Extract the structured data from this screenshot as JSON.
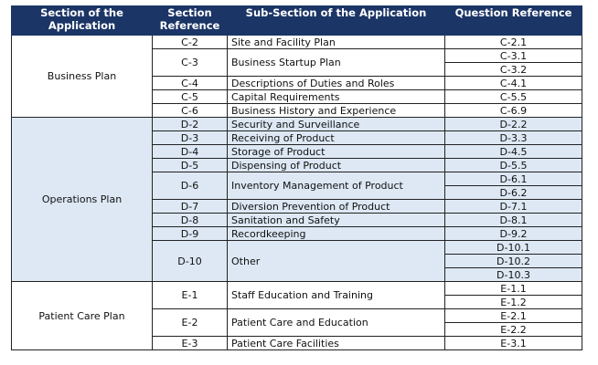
{
  "header": {
    "section": "Section of the Application",
    "section_ref": "Section Reference",
    "sub_section": "Sub-Section of the Application",
    "question_ref": "Question Reference"
  },
  "colors": {
    "header_bg": "#1b3566",
    "shaded_bg": "#dde8f4"
  },
  "sections": [
    {
      "name": "Business Plan",
      "shaded": false,
      "subsections": [
        {
          "ref": "C-2",
          "name": "Site and Facility Plan",
          "questions": [
            "C-2.1"
          ]
        },
        {
          "ref": "C-3",
          "name": "Business Startup Plan",
          "questions": [
            "C-3.1",
            "C-3.2"
          ]
        },
        {
          "ref": "C-4",
          "name": "Descriptions of Duties and Roles",
          "questions": [
            "C-4.1"
          ]
        },
        {
          "ref": "C-5",
          "name": "Capital Requirements",
          "questions": [
            "C-5.5"
          ]
        },
        {
          "ref": "C-6",
          "name": "Business History and Experience",
          "questions": [
            "C-6.9"
          ]
        }
      ]
    },
    {
      "name": "Operations Plan",
      "shaded": true,
      "subsections": [
        {
          "ref": "D-2",
          "name": "Security and Surveillance",
          "questions": [
            "D-2.2"
          ]
        },
        {
          "ref": "D-3",
          "name": "Receiving of Product",
          "questions": [
            "D-3.3"
          ]
        },
        {
          "ref": "D-4",
          "name": "Storage of Product",
          "questions": [
            "D-4.5"
          ]
        },
        {
          "ref": "D-5",
          "name": "Dispensing of Product",
          "questions": [
            "D-5.5"
          ]
        },
        {
          "ref": "D-6",
          "name": "Inventory Management of Product",
          "questions": [
            "D-6.1",
            "D-6.2"
          ]
        },
        {
          "ref": "D-7",
          "name": "Diversion Prevention of Product",
          "questions": [
            "D-7.1"
          ]
        },
        {
          "ref": "D-8",
          "name": "Sanitation and Safety",
          "questions": [
            "D-8.1"
          ]
        },
        {
          "ref": "D-9",
          "name": "Recordkeeping",
          "questions": [
            "D-9.2"
          ]
        },
        {
          "ref": "D-10",
          "name": "Other",
          "questions": [
            "D-10.1",
            "D-10.2",
            "D-10.3"
          ]
        }
      ]
    },
    {
      "name": "Patient Care Plan",
      "shaded": false,
      "subsections": [
        {
          "ref": "E-1",
          "name": "Staff Education and Training",
          "questions": [
            "E-1.1",
            "E-1.2"
          ]
        },
        {
          "ref": "E-2",
          "name": "Patient Care and Education",
          "questions": [
            "E-2.1",
            "E-2.2"
          ]
        },
        {
          "ref": "E-3",
          "name": "Patient Care Facilities",
          "questions": [
            "E-3.1"
          ]
        }
      ]
    }
  ]
}
